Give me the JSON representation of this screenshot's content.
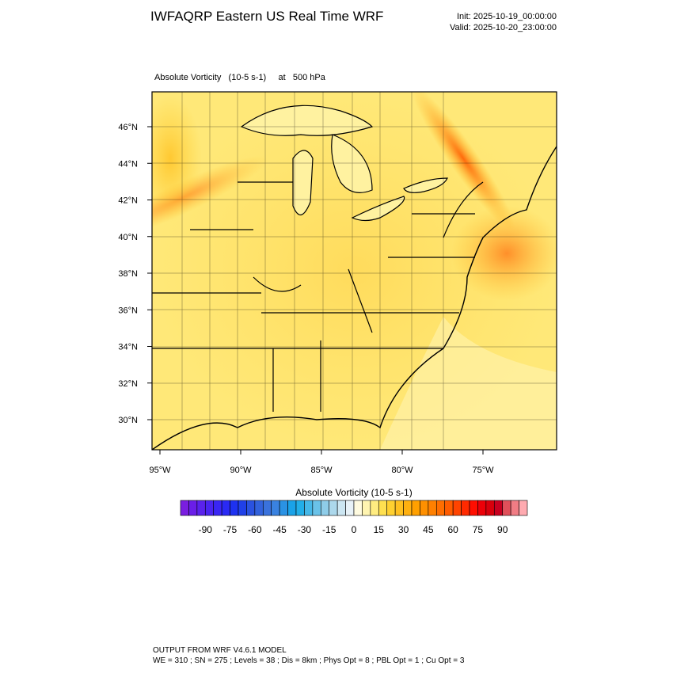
{
  "header": {
    "title": "IWFAQRP Eastern US Real Time WRF",
    "init": "Init: 2025-10-19_00:00:00",
    "valid": "Valid: 2025-10-20_23:00:00"
  },
  "map": {
    "field_label": "Absolute Vorticity   (10-5 s-1)     at   500 hPa",
    "lat_labels": [
      "46°N",
      "44°N",
      "42°N",
      "40°N",
      "38°N",
      "36°N",
      "34°N",
      "32°N",
      "30°N"
    ],
    "lon_labels": [
      "95°W",
      "90°W",
      "85°W",
      "80°W",
      "75°W"
    ]
  },
  "colorbar": {
    "title": "Absolute Vorticity  (10-5 s-1)",
    "range": [
      -105,
      105
    ],
    "ticks": [
      -90,
      -75,
      -60,
      -45,
      -30,
      -15,
      0,
      15,
      30,
      45,
      60,
      75,
      90
    ],
    "colors": [
      "#7a1ee0",
      "#6a1ee8",
      "#5a22ec",
      "#4a24f0",
      "#3a26f4",
      "#2a2af4",
      "#1e32f0",
      "#2040e8",
      "#2a52e0",
      "#3262dc",
      "#3a72dc",
      "#3a82e0",
      "#2a92e4",
      "#1aa2e8",
      "#22aee8",
      "#46b8e8",
      "#6ac2e8",
      "#8ecce8",
      "#acd8ec",
      "#cce6f2",
      "#e8f2f8",
      "#fffbe0",
      "#fff4b0",
      "#ffec80",
      "#ffe050",
      "#ffd030",
      "#ffc020",
      "#ffb010",
      "#ffa000",
      "#ff9000",
      "#ff8000",
      "#ff6e00",
      "#ff5c00",
      "#ff4400",
      "#ff2a00",
      "#ff0e00",
      "#ec0008",
      "#d8000c",
      "#c80020",
      "#e0505a",
      "#f07c84",
      "#ffaab0"
    ]
  },
  "footer": {
    "line1": "OUTPUT FROM WRF V4.6.1 MODEL",
    "line2": "WE = 310 ; SN = 275 ; Levels = 38 ; Dis = 8km ; Phys Opt = 8 ; PBL Opt = 1 ; Cu Opt = 3"
  }
}
